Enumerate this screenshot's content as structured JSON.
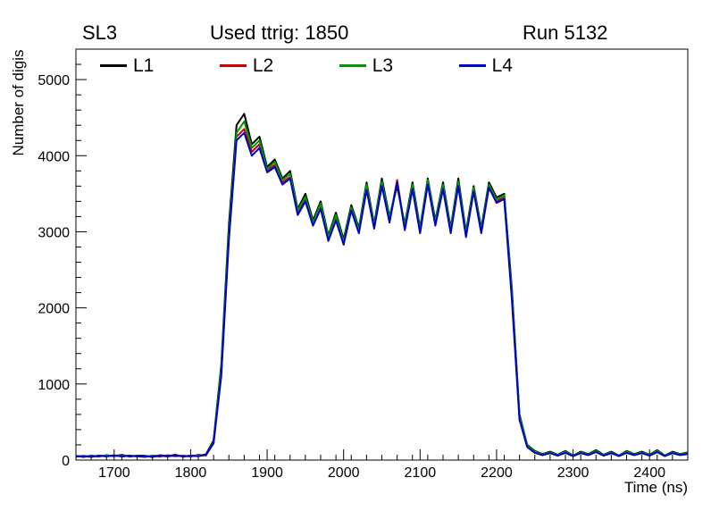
{
  "titles": {
    "left": "SL3",
    "center": "Used ttrig: 1850",
    "right": "Run 5132"
  },
  "chart_data": {
    "type": "line",
    "title": "Used ttrig: 1850",
    "subtitle_left": "SL3",
    "subtitle_right": "Run 5132",
    "xlabel": "Time (ns)",
    "ylabel": "Number of digis",
    "xlim": [
      1650,
      2450
    ],
    "ylim": [
      0,
      5400
    ],
    "xticks": [
      1700,
      1800,
      1900,
      2000,
      2100,
      2200,
      2300,
      2400
    ],
    "yticks": [
      0,
      1000,
      2000,
      3000,
      4000,
      5000
    ],
    "x_minor_step": 20,
    "y_minor_step": 200,
    "grid": false,
    "legend_position": "top-inside",
    "x": [
      1650,
      1660,
      1670,
      1680,
      1690,
      1700,
      1710,
      1720,
      1730,
      1740,
      1750,
      1760,
      1770,
      1780,
      1790,
      1800,
      1810,
      1820,
      1830,
      1840,
      1850,
      1860,
      1870,
      1880,
      1890,
      1900,
      1910,
      1920,
      1930,
      1940,
      1950,
      1960,
      1970,
      1980,
      1990,
      2000,
      2010,
      2020,
      2030,
      2040,
      2050,
      2060,
      2070,
      2080,
      2090,
      2100,
      2110,
      2120,
      2130,
      2140,
      2150,
      2160,
      2170,
      2180,
      2190,
      2200,
      2210,
      2220,
      2230,
      2240,
      2250,
      2260,
      2270,
      2280,
      2290,
      2300,
      2310,
      2320,
      2330,
      2340,
      2350,
      2360,
      2370,
      2380,
      2390,
      2400,
      2410,
      2420,
      2430,
      2440,
      2450
    ],
    "series": [
      {
        "name": "L1",
        "color": "#000000",
        "values": [
          55,
          40,
          60,
          45,
          65,
          50,
          70,
          45,
          60,
          55,
          40,
          65,
          50,
          70,
          45,
          60,
          55,
          75,
          260,
          1250,
          3100,
          4400,
          4550,
          4150,
          4250,
          3850,
          3950,
          3700,
          3800,
          3300,
          3500,
          3150,
          3400,
          2950,
          3250,
          2900,
          3350,
          3050,
          3650,
          3100,
          3700,
          3200,
          3600,
          3100,
          3650,
          3050,
          3700,
          3150,
          3650,
          3050,
          3700,
          3000,
          3600,
          3050,
          3650,
          3450,
          3500,
          2250,
          600,
          200,
          120,
          80,
          110,
          70,
          120,
          60,
          110,
          80,
          130,
          70,
          110,
          60,
          120,
          80,
          110,
          70,
          130,
          60,
          110,
          80,
          100
        ]
      },
      {
        "name": "L2",
        "color": "#cc0000",
        "values": [
          45,
          55,
          40,
          60,
          50,
          65,
          45,
          60,
          50,
          40,
          60,
          45,
          65,
          50,
          60,
          45,
          70,
          60,
          230,
          1150,
          2950,
          4250,
          4350,
          4050,
          4150,
          3800,
          3880,
          3650,
          3720,
          3250,
          3420,
          3100,
          3330,
          2900,
          3180,
          2850,
          3300,
          3000,
          3580,
          3060,
          3620,
          3150,
          3680,
          3050,
          3580,
          3000,
          3650,
          3100,
          3580,
          3000,
          3620,
          2950,
          3550,
          3000,
          3600,
          3400,
          3450,
          2150,
          550,
          180,
          100,
          70,
          95,
          60,
          100,
          55,
          95,
          70,
          110,
          60,
          95,
          55,
          100,
          70,
          95,
          60,
          110,
          55,
          95,
          70,
          85
        ]
      },
      {
        "name": "L3",
        "color": "#009900",
        "values": [
          50,
          45,
          55,
          50,
          60,
          55,
          65,
          50,
          55,
          45,
          55,
          60,
          45,
          65,
          50,
          55,
          60,
          65,
          240,
          1200,
          3000,
          4300,
          4450,
          4100,
          4200,
          3820,
          3920,
          3680,
          3760,
          3280,
          3460,
          3120,
          3370,
          2930,
          3220,
          2870,
          3320,
          3030,
          3620,
          3080,
          3660,
          3180,
          3640,
          3080,
          3620,
          3030,
          3680,
          3130,
          3620,
          3030,
          3660,
          2980,
          3580,
          3030,
          3620,
          3420,
          3480,
          2200,
          580,
          190,
          110,
          75,
          100,
          65,
          110,
          58,
          100,
          75,
          120,
          65,
          100,
          58,
          110,
          75,
          100,
          65,
          120,
          58,
          100,
          75,
          90
        ]
      },
      {
        "name": "L4",
        "color": "#0000cc",
        "values": [
          48,
          52,
          45,
          58,
          48,
          60,
          52,
          55,
          48,
          52,
          45,
          58,
          52,
          60,
          48,
          55,
          52,
          68,
          220,
          1100,
          2900,
          4200,
          4300,
          4000,
          4100,
          3780,
          3850,
          3620,
          3700,
          3220,
          3400,
          3080,
          3300,
          2880,
          3150,
          2830,
          3280,
          2980,
          3550,
          3040,
          3600,
          3120,
          3650,
          3020,
          3560,
          2980,
          3620,
          3080,
          3560,
          2980,
          3600,
          2930,
          3530,
          2980,
          3580,
          3380,
          3430,
          2100,
          530,
          170,
          95,
          65,
          90,
          58,
          95,
          52,
          90,
          65,
          105,
          58,
          90,
          52,
          95,
          65,
          90,
          58,
          105,
          52,
          90,
          65,
          80
        ]
      }
    ]
  }
}
